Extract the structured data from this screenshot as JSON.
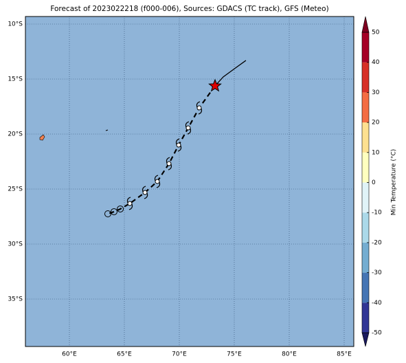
{
  "map": {
    "title": "Forecast of 2023022218 (f000-006), Sources: GDACS (TC track), GFS (Meteo)",
    "ocean_color": "#8fb4d8",
    "xlim": [
      56,
      85.875
    ],
    "ylim": [
      -39.3125,
      -9.3125
    ],
    "xticks": [
      {
        "value": 60,
        "label": "60°E"
      },
      {
        "value": 65,
        "label": "65°E"
      },
      {
        "value": 70,
        "label": "70°E"
      },
      {
        "value": 75,
        "label": "75°E"
      },
      {
        "value": 80,
        "label": "80°E"
      },
      {
        "value": 85,
        "label": "85°E"
      }
    ],
    "yticks": [
      {
        "value": -10,
        "label": "10°S"
      },
      {
        "value": -15,
        "label": "15°S"
      },
      {
        "value": -20,
        "label": "20°S"
      },
      {
        "value": -25,
        "label": "25°S"
      },
      {
        "value": -30,
        "label": "30°S"
      },
      {
        "value": -35,
        "label": "35°S"
      }
    ],
    "track": {
      "past": {
        "lon": [
          76.06,
          75.1,
          74.0,
          73.25
        ],
        "lat": [
          -13.31,
          -14.0,
          -14.8,
          -15.62
        ]
      },
      "current": {
        "lon": 73.25,
        "lat": -15.62
      },
      "storm": {
        "lon": [
          71.81,
          70.81,
          69.94,
          69.06,
          68.0,
          66.88,
          65.5
        ],
        "lat": [
          -17.62,
          -19.44,
          -21.0,
          -22.69,
          -24.31,
          -25.31,
          -26.31
        ]
      },
      "low": {
        "lon": [
          64.63,
          64.06,
          63.5
        ],
        "lat": [
          -26.81,
          -27.06,
          -27.25
        ]
      }
    },
    "colorbar": {
      "label": "Min Temperature (°C)",
      "lim": [
        -50,
        50
      ],
      "ticks": [
        -50,
        -40,
        -30,
        -20,
        -10,
        0,
        10,
        20,
        30,
        40,
        50
      ],
      "colors": [
        "#313695",
        "#4575b4",
        "#74add1",
        "#abd9e9",
        "#e0f3f8",
        "#ffffbf",
        "#fee090",
        "#f46d43",
        "#d73027",
        "#a50026"
      ],
      "under_color": "#1a1a5e",
      "over_color": "#7f0020"
    }
  }
}
